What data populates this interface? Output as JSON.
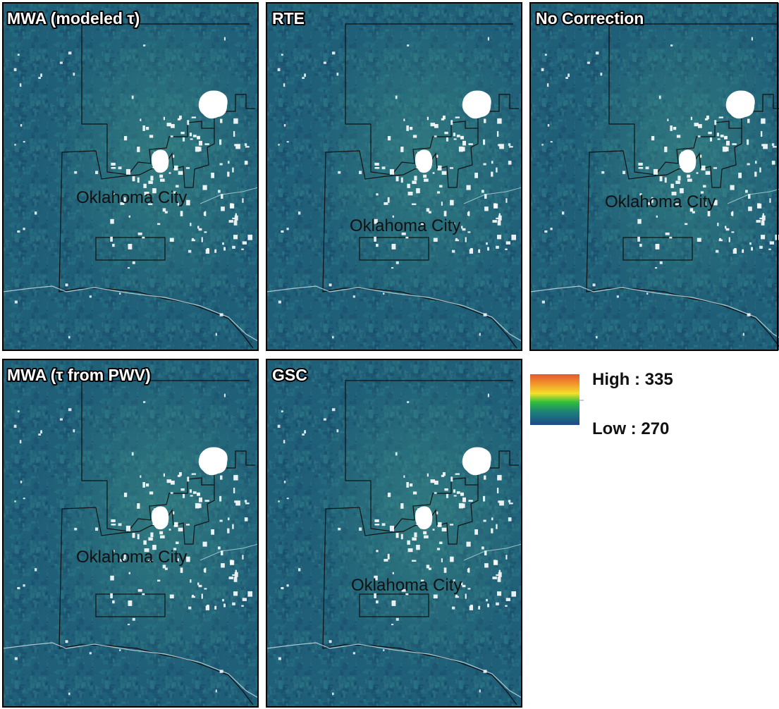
{
  "panels": [
    {
      "title": "MWA (modeled τ)",
      "city_label": "Oklahoma City"
    },
    {
      "title": "RTE",
      "city_label": "Oklahoma City"
    },
    {
      "title": "No Correction",
      "city_label": "Oklahoma City"
    },
    {
      "title": "MWA (τ from PWV)",
      "city_label": "Oklahoma City"
    },
    {
      "title": "GSC",
      "city_label": "Oklahoma City"
    }
  ],
  "legend": {
    "high_label": "High : 335",
    "low_label": "Low : 270"
  }
}
